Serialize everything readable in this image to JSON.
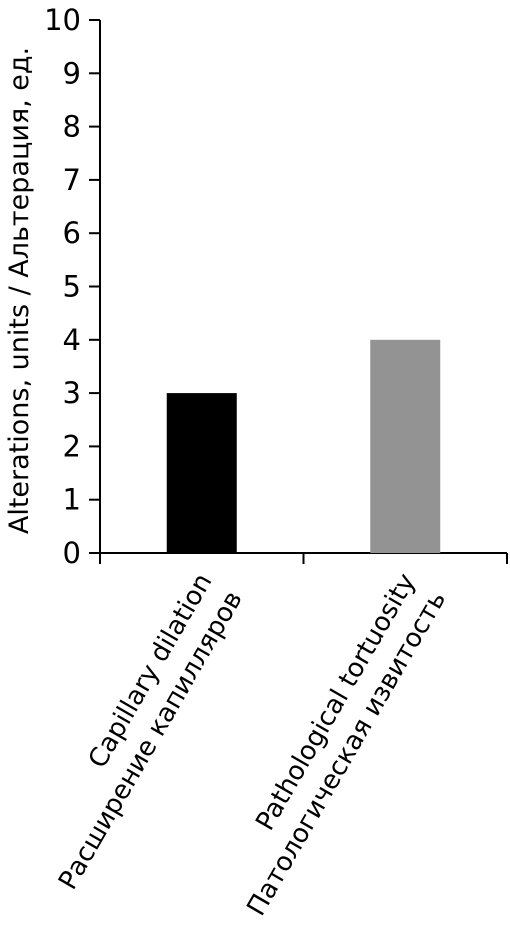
{
  "chart_data": {
    "type": "bar",
    "ylabel": "Alterations, units / Альтерация, ед.",
    "ylim": [
      0,
      10
    ],
    "yticks": [
      0,
      1,
      2,
      3,
      4,
      5,
      6,
      7,
      8,
      9,
      10
    ],
    "categories": [
      [
        "Capillary dilation",
        "Расширение капилляров"
      ],
      [
        "Pathological tortuosity",
        "Патологическая извитость"
      ]
    ],
    "values": [
      3,
      4
    ],
    "colors": [
      "#000000",
      "#939393"
    ],
    "grid": false,
    "legend": "none"
  }
}
